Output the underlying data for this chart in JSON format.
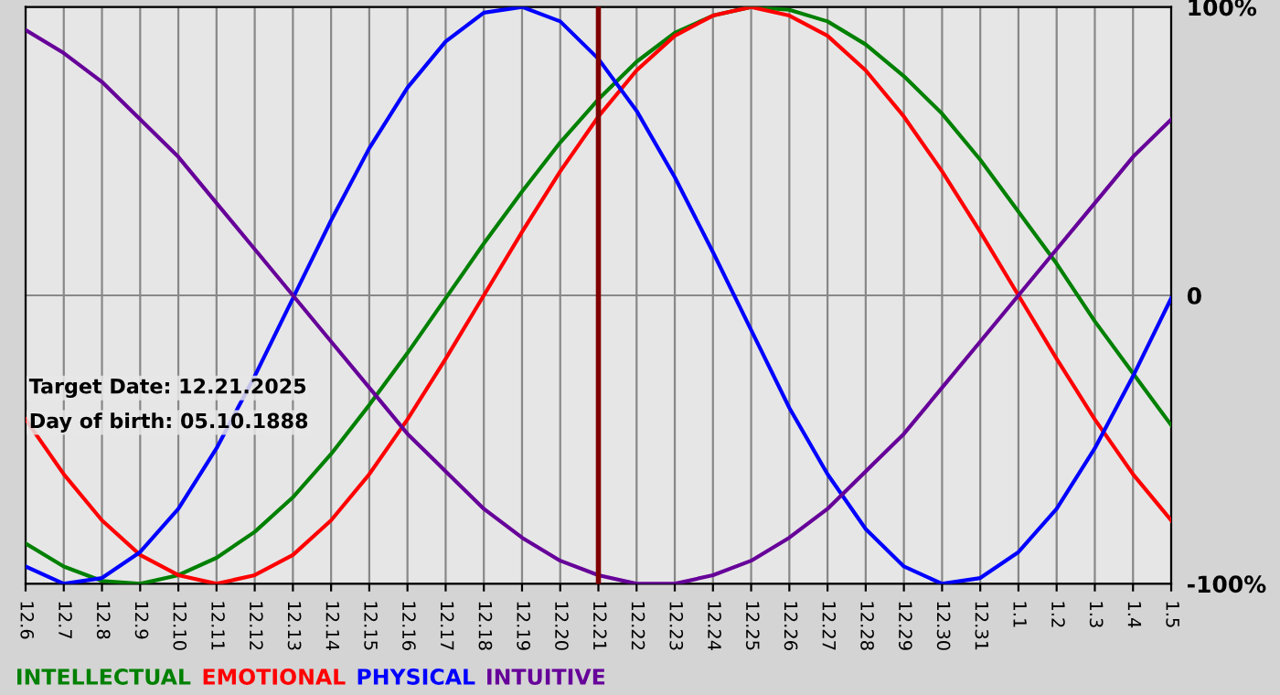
{
  "chart_data": {
    "type": "line",
    "categories": [
      "12.6",
      "12.7",
      "12.8",
      "12.9",
      "12.10",
      "12.11",
      "12.12",
      "12.13",
      "12.14",
      "12.15",
      "12.16",
      "12.17",
      "12.18",
      "12.19",
      "12.20",
      "12.21",
      "12.22",
      "12.23",
      "12.24",
      "12.25",
      "12.26",
      "12.27",
      "12.28",
      "12.29",
      "12.30",
      "12.31",
      "1.1",
      "1.2",
      "1.3",
      "1.4",
      "1.5"
    ],
    "series": [
      {
        "name": "INTELLECTUAL",
        "color": "#008000",
        "values": [
          -86,
          -94,
          -99,
          -100,
          -97,
          -91,
          -82,
          -70,
          -55,
          -38,
          -20,
          -1,
          18,
          36,
          53,
          68,
          81,
          91,
          97,
          100,
          99,
          95,
          87,
          76,
          63,
          47,
          29,
          11,
          -9,
          -27,
          -45
        ]
      },
      {
        "name": "EMOTIONAL",
        "color": "#ff0000",
        "values": [
          -43,
          -62,
          -78,
          -90,
          -97,
          -100,
          -97,
          -90,
          -78,
          -62,
          -43,
          -22,
          0,
          22,
          43,
          62,
          78,
          90,
          97,
          100,
          97,
          90,
          78,
          62,
          43,
          22,
          0,
          -22,
          -43,
          -62,
          -78
        ]
      },
      {
        "name": "PHYSICAL",
        "color": "#0000ff",
        "values": [
          -94,
          -100,
          -98,
          -89,
          -74,
          -53,
          -28,
          -1,
          26,
          51,
          72,
          88,
          98,
          100,
          95,
          82,
          64,
          41,
          15,
          -12,
          -39,
          -62,
          -81,
          -94,
          -100,
          -98,
          -89,
          -74,
          -53,
          -28,
          -1
        ]
      },
      {
        "name": "INTUITIVE",
        "color": "#660099",
        "values": [
          92,
          84,
          74,
          61,
          48,
          32,
          16,
          0,
          -16,
          -32,
          -48,
          -61,
          -74,
          -84,
          -92,
          -97,
          -100,
          -100,
          -97,
          -92,
          -84,
          -74,
          -61,
          -48,
          -32,
          -16,
          0,
          16,
          32,
          48,
          61
        ]
      }
    ],
    "ylim": [
      -100,
      100
    ],
    "yticks": [
      {
        "value": -100,
        "label": "-100%"
      },
      0,
      {
        "value": 100,
        "label": "100%"
      }
    ],
    "grid": true,
    "legend": "bottom",
    "ref_lines": [
      {
        "axis": "x",
        "value": "12.21",
        "color": "#800000"
      }
    ],
    "annotations": [
      "Target Date: 12.21.2025",
      "Day of birth: 05.10.1888"
    ]
  }
}
